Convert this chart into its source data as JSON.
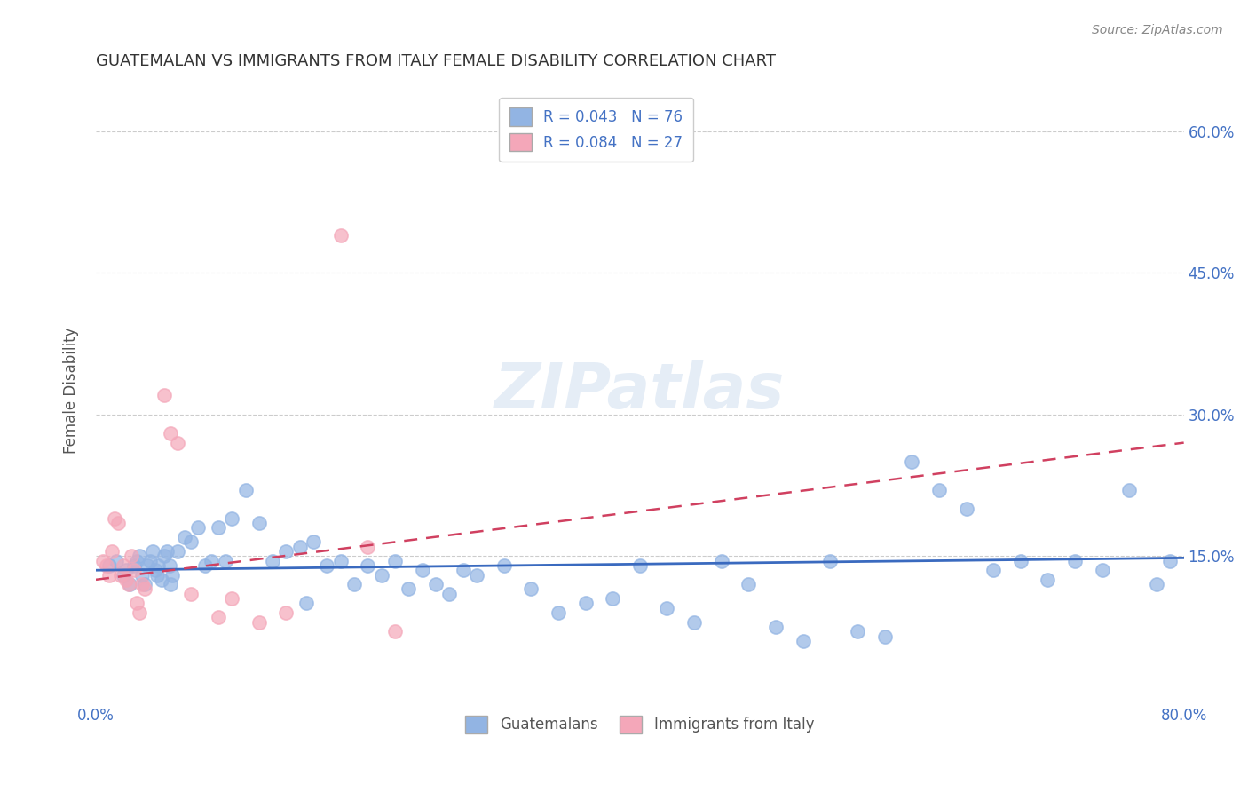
{
  "title": "GUATEMALAN VS IMMIGRANTS FROM ITALY FEMALE DISABILITY CORRELATION CHART",
  "source": "Source: ZipAtlas.com",
  "ylabel": "Female Disability",
  "xlim": [
    0.0,
    0.8
  ],
  "ylim": [
    0.0,
    0.65
  ],
  "yticks": [
    0.15,
    0.3,
    0.45,
    0.6
  ],
  "ytick_labels": [
    "15.0%",
    "30.0%",
    "45.0%",
    "60.0%"
  ],
  "watermark": "ZIPatlas",
  "legend1_label": "R = 0.043   N = 76",
  "legend2_label": "R = 0.084   N = 27",
  "blue_color": "#92b4e3",
  "pink_color": "#f4a7b9",
  "blue_line_color": "#3a6abf",
  "pink_line_color": "#d04060",
  "title_color": "#333333",
  "axis_label_color": "#555555",
  "tick_color": "#4472c4",
  "grid_color": "#cccccc",
  "blue_scatter_x": [
    0.01,
    0.015,
    0.02,
    0.022,
    0.025,
    0.028,
    0.03,
    0.032,
    0.034,
    0.036,
    0.038,
    0.04,
    0.042,
    0.044,
    0.046,
    0.048,
    0.05,
    0.052,
    0.054,
    0.056,
    0.06,
    0.065,
    0.07,
    0.075,
    0.08,
    0.085,
    0.09,
    0.1,
    0.11,
    0.12,
    0.13,
    0.14,
    0.15,
    0.16,
    0.17,
    0.18,
    0.19,
    0.2,
    0.21,
    0.22,
    0.23,
    0.24,
    0.25,
    0.26,
    0.27,
    0.28,
    0.3,
    0.32,
    0.34,
    0.36,
    0.38,
    0.4,
    0.42,
    0.44,
    0.46,
    0.48,
    0.5,
    0.52,
    0.54,
    0.56,
    0.58,
    0.6,
    0.62,
    0.64,
    0.66,
    0.68,
    0.7,
    0.72,
    0.74,
    0.76,
    0.78,
    0.79,
    0.045,
    0.055,
    0.095,
    0.155
  ],
  "blue_scatter_y": [
    0.14,
    0.145,
    0.13,
    0.135,
    0.12,
    0.14,
    0.145,
    0.15,
    0.13,
    0.12,
    0.14,
    0.145,
    0.155,
    0.135,
    0.14,
    0.125,
    0.15,
    0.155,
    0.14,
    0.13,
    0.155,
    0.17,
    0.165,
    0.18,
    0.14,
    0.145,
    0.18,
    0.19,
    0.22,
    0.185,
    0.145,
    0.155,
    0.16,
    0.165,
    0.14,
    0.145,
    0.12,
    0.14,
    0.13,
    0.145,
    0.115,
    0.135,
    0.12,
    0.11,
    0.135,
    0.13,
    0.14,
    0.115,
    0.09,
    0.1,
    0.105,
    0.14,
    0.095,
    0.08,
    0.145,
    0.12,
    0.075,
    0.06,
    0.145,
    0.07,
    0.065,
    0.25,
    0.22,
    0.2,
    0.135,
    0.145,
    0.125,
    0.145,
    0.135,
    0.22,
    0.12,
    0.145,
    0.13,
    0.12,
    0.145,
    0.1
  ],
  "pink_scatter_x": [
    0.005,
    0.008,
    0.01,
    0.012,
    0.014,
    0.016,
    0.018,
    0.02,
    0.022,
    0.024,
    0.026,
    0.028,
    0.03,
    0.032,
    0.034,
    0.036,
    0.05,
    0.055,
    0.06,
    0.07,
    0.09,
    0.1,
    0.12,
    0.14,
    0.18,
    0.2,
    0.22
  ],
  "pink_scatter_y": [
    0.145,
    0.14,
    0.13,
    0.155,
    0.19,
    0.185,
    0.13,
    0.14,
    0.125,
    0.12,
    0.15,
    0.135,
    0.1,
    0.09,
    0.12,
    0.115,
    0.32,
    0.28,
    0.27,
    0.11,
    0.085,
    0.105,
    0.08,
    0.09,
    0.49,
    0.16,
    0.07
  ],
  "blue_line_x": [
    0.0,
    0.8
  ],
  "blue_line_y": [
    0.135,
    0.148
  ],
  "pink_line_x": [
    0.0,
    0.8
  ],
  "pink_line_y": [
    0.125,
    0.27
  ],
  "background_color": "#ffffff",
  "marker_size": 120
}
